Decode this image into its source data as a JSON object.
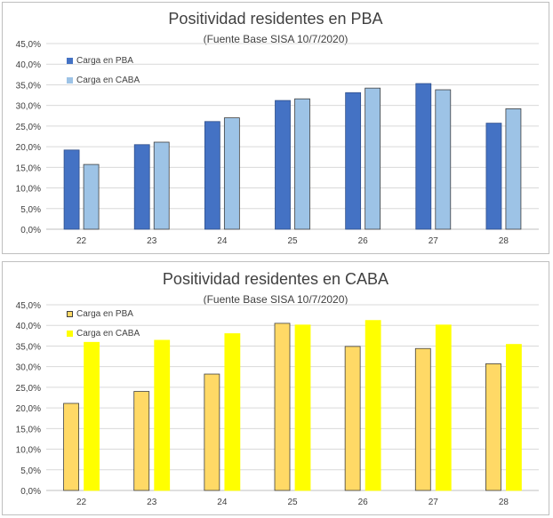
{
  "chart_data": [
    {
      "type": "bar",
      "title": "Positividad residentes en PBA",
      "subtitle": "(Fuente Base SISA 10/7/2020)",
      "categories": [
        "22",
        "23",
        "24",
        "25",
        "26",
        "27",
        "28"
      ],
      "series": [
        {
          "name": "Carga en PBA",
          "color": "#4472c4",
          "border": "#2f4f8a",
          "values": [
            19.2,
            20.5,
            26.1,
            31.2,
            33.1,
            35.3,
            25.7
          ]
        },
        {
          "name": "Carga en CABA",
          "color": "#9dc3e6",
          "border": "#404040",
          "values": [
            15.7,
            21.1,
            27.0,
            31.6,
            34.2,
            33.8,
            29.2
          ]
        }
      ],
      "ylim": [
        0,
        45
      ],
      "yticks": [
        "0,0%",
        "5,0%",
        "10,0%",
        "15,0%",
        "20,0%",
        "25,0%",
        "30,0%",
        "35,0%",
        "40,0%",
        "45,0%"
      ],
      "legend": "top-left",
      "grid": true
    },
    {
      "type": "bar",
      "title": "Positividad residentes en CABA",
      "subtitle": "(Fuente Base SISA 10/7/2020)",
      "categories": [
        "22",
        "23",
        "24",
        "25",
        "26",
        "27",
        "28"
      ],
      "series": [
        {
          "name": "Carga en PBA",
          "color": "#ffd966",
          "border": "#404040",
          "values": [
            21.1,
            24.0,
            28.2,
            40.5,
            34.9,
            34.4,
            30.7
          ]
        },
        {
          "name": "Carga en CABA",
          "color": "#ffff00",
          "border": "#ffff00",
          "values": [
            35.9,
            36.4,
            38.0,
            40.1,
            41.2,
            40.1,
            35.4
          ]
        }
      ],
      "ylim": [
        0,
        45
      ],
      "yticks": [
        "0,0%",
        "5,0%",
        "10,0%",
        "15,0%",
        "20,0%",
        "25,0%",
        "30,0%",
        "35,0%",
        "40,0%",
        "45,0%"
      ],
      "legend": "top-left",
      "grid": true
    }
  ]
}
